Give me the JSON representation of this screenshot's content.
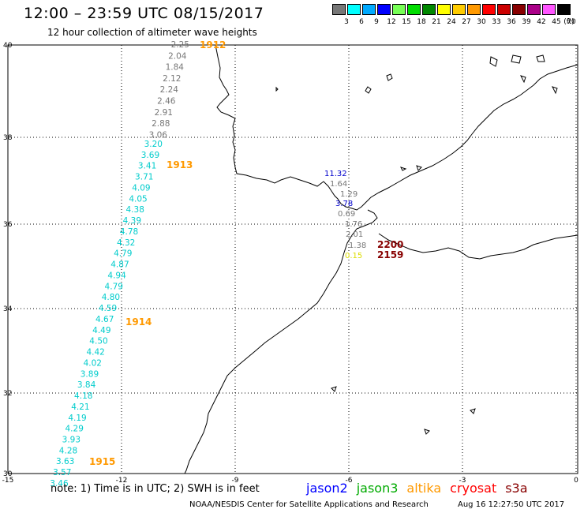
{
  "header": {
    "title": "12:00 – 23:59 UTC 08/15/2017",
    "subtitle": "12 hour collection of altimeter wave heights"
  },
  "scale": {
    "unit": "(ft)",
    "labels": [
      "3",
      "6",
      "9",
      "12",
      "15",
      "18",
      "21",
      "24",
      "27",
      "30",
      "33",
      "36",
      "39",
      "42",
      "45",
      "70"
    ],
    "colors": [
      "#777777",
      "#00ffff",
      "#00aaff",
      "#0000ff",
      "#77ff55",
      "#00dd00",
      "#008800",
      "#ffff00",
      "#ffcc00",
      "#ff9900",
      "#ff0000",
      "#cc0000",
      "#880000",
      "#aa0088",
      "#ff55ff",
      "#000000"
    ]
  },
  "axes": {
    "lat_labels": [
      "40",
      "38",
      "36",
      "34",
      "32",
      "30"
    ],
    "lon_labels": [
      "-15",
      "-12",
      "-9",
      "-6",
      "-3",
      "0"
    ]
  },
  "tracks": {
    "track_1912": {
      "time": "1912",
      "color": "#777777",
      "values": [
        "2.25",
        "2.04",
        "1.84",
        "2.12",
        "2.24",
        "2.46",
        "2.91",
        "2.88",
        "3.06"
      ]
    },
    "track_1913_1915": {
      "time_labels": [
        "1913",
        "1914",
        "1915"
      ],
      "color": "#00cccc",
      "values": [
        "3.20",
        "3.69",
        "3.41",
        "3.71",
        "4.09",
        "4.05",
        "4.38",
        "4.39",
        "4.78",
        "4.32",
        "4.79",
        "4.87",
        "4.94",
        "4.79",
        "4.80",
        "4.59",
        "4.67",
        "4.49",
        "4.50",
        "4.42",
        "4.02",
        "3.89",
        "3.84",
        "4.18",
        "4.21",
        "4.19",
        "4.29",
        "3.93",
        "4.28",
        "3.63",
        "3.57",
        "3.46"
      ]
    },
    "strait": {
      "jason2_value": "11.32",
      "jason2_value_2": "3.78",
      "gray_values": [
        "1.64",
        "1.29",
        "0.69",
        "1.76",
        "2.01",
        "1.38"
      ],
      "yellow_value": "0.15",
      "cryosat_times": [
        "2200",
        "2159"
      ]
    }
  },
  "time_label_color": "#ff9900",
  "footer": {
    "note": "note:  1) Time is in UTC;  2) SWH is in feet",
    "legend": [
      {
        "name": "jason2",
        "color": "#0000ff"
      },
      {
        "name": "jason3",
        "color": "#00aa00"
      },
      {
        "name": "altika",
        "color": "#ff9900"
      },
      {
        "name": "cryosat",
        "color": "#ff0000"
      },
      {
        "name": "s3a",
        "color": "#880000"
      }
    ],
    "credit": "NOAA/NESDIS Center for Satellite Applications and Research",
    "timestamp": "Aug 16 12:27:50 UTC 2017"
  }
}
